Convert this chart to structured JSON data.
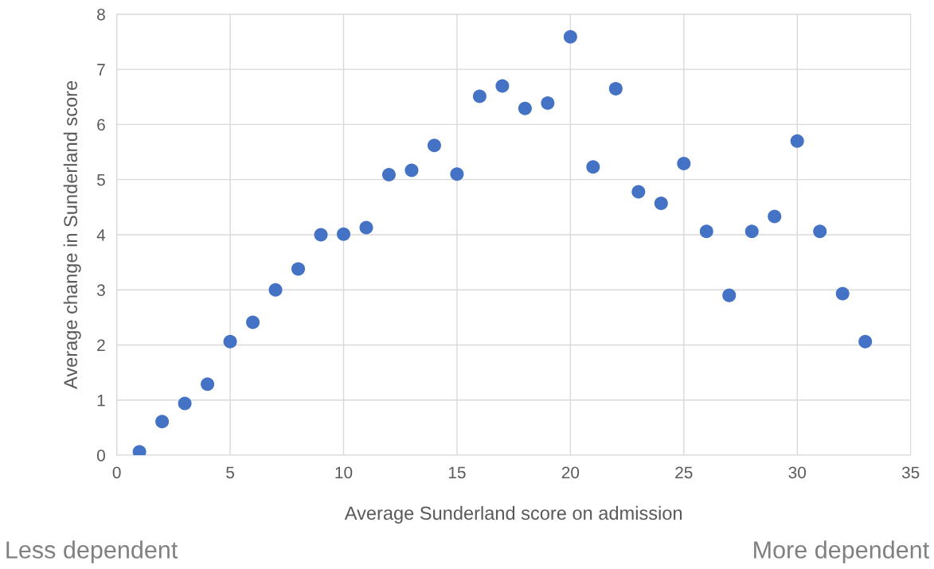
{
  "chart_data": {
    "type": "scatter",
    "xlabel": "Average Sunderland score on admission",
    "ylabel": "Average change in Sunderland score",
    "x": [
      1,
      2,
      3,
      4,
      5,
      6,
      7,
      8,
      9,
      10,
      11,
      12,
      13,
      14,
      15,
      16,
      17,
      18,
      19,
      20,
      21,
      22,
      23,
      24,
      25,
      26,
      27,
      28,
      29,
      30,
      31,
      32,
      33
    ],
    "series": [
      {
        "color": "#4472c4",
        "values": [
          0.06,
          0.61,
          0.94,
          1.29,
          2.06,
          2.41,
          3.0,
          3.38,
          4.0,
          4.01,
          4.13,
          5.09,
          5.17,
          5.62,
          5.1,
          6.51,
          6.7,
          6.29,
          6.39,
          7.59,
          5.23,
          6.65,
          4.78,
          4.57,
          5.29,
          4.06,
          2.9,
          4.06,
          4.33,
          5.7,
          4.06,
          2.93,
          2.06
        ]
      }
    ],
    "xlim": [
      0,
      35
    ],
    "xticks": [
      0,
      5,
      10,
      15,
      20,
      25,
      30,
      35
    ],
    "ylim": [
      0,
      8
    ],
    "yticks": [
      0,
      1,
      2,
      3,
      4,
      5,
      6,
      7,
      8
    ],
    "grid": true,
    "marker": "circle",
    "annotations": [
      "Less dependent",
      "More dependent"
    ]
  }
}
